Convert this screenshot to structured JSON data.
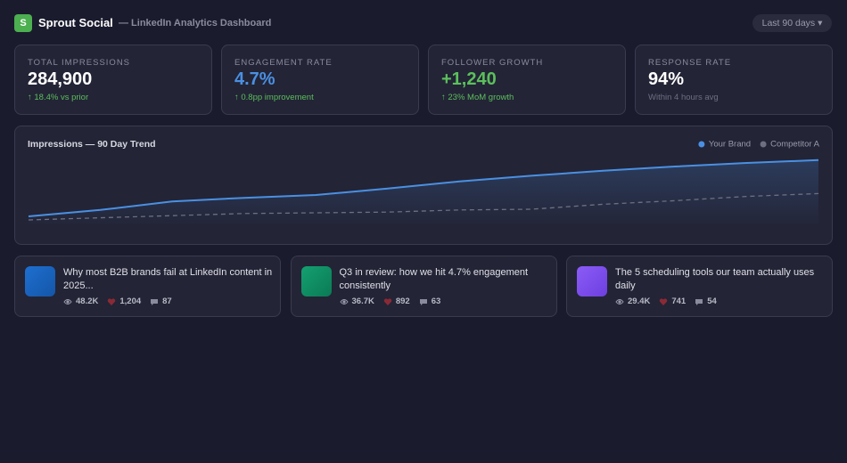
{
  "header": {
    "logo": "S",
    "brand": "Sprout Social",
    "subtitle": "— LinkedIn Analytics Dashboard",
    "range_button": "Last 90 days ▾"
  },
  "kpis": [
    {
      "label": "TOTAL IMPRESSIONS",
      "value": "284,900",
      "note": "↑ 18.4% vs prior"
    },
    {
      "label": "ENGAGEMENT RATE",
      "value": "4.7%",
      "note": "↑ 0.8pp improvement"
    },
    {
      "label": "FOLLOWER GROWTH",
      "value": "+1,240",
      "note": "↑ 23% MoM growth"
    },
    {
      "label": "RESPONSE RATE",
      "value": "94%",
      "note": "Within 4 hours avg"
    }
  ],
  "chart_data": {
    "type": "line",
    "title": "Impressions — 90 Day Trend",
    "categories": [
      null,
      null,
      null,
      null,
      null,
      null,
      null,
      null,
      null,
      null,
      null,
      null
    ],
    "ylim": [
      0,
      100
    ],
    "series": [
      {
        "name": "Your Brand",
        "color": "#4a90e2",
        "dashed": false,
        "values": [
          10,
          19,
          31,
          36,
          40,
          49,
          59,
          67,
          74,
          80,
          85,
          89
        ]
      },
      {
        "name": "Competitor A",
        "color": "#6e6f80",
        "dashed": true,
        "values": [
          5,
          8,
          11,
          14,
          15,
          16,
          19,
          20,
          27,
          32,
          38,
          42
        ]
      }
    ]
  },
  "posts": [
    {
      "title": "Why most B2B brands fail at LinkedIn content in 2025...",
      "views": "48.2K",
      "likes": "1,204",
      "comments": "87"
    },
    {
      "title": "Q3 in review: how we hit 4.7% engagement consistently",
      "views": "36.7K",
      "likes": "892",
      "comments": "63"
    },
    {
      "title": "The 5 scheduling tools our team actually uses daily",
      "views": "29.4K",
      "likes": "741",
      "comments": "54"
    }
  ]
}
